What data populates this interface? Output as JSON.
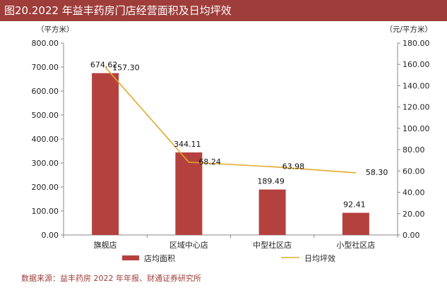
{
  "title": "图20.2022 年益丰药房门店经营面积及日均坪效",
  "source": "数据来源：益丰药房 2022 年年报、财通证券研究所",
  "chart_data": {
    "type": "bar",
    "categories": [
      "旗舰店",
      "区域中心店",
      "中型社区店",
      "小型社区店"
    ],
    "series": [
      {
        "name": "店均面积",
        "type": "bar",
        "axis": "left",
        "values": [
          674.62,
          344.11,
          189.49,
          92.41
        ],
        "labels": [
          "674.62",
          "344.11",
          "189.49",
          "92.41"
        ],
        "color": "#b5413f"
      },
      {
        "name": "日均坪效",
        "type": "line",
        "axis": "right",
        "values": [
          157.3,
          68.24,
          63.98,
          58.3
        ],
        "labels": [
          "157.30",
          "68.24",
          "63.98",
          "58.30"
        ],
        "color": "#e2a82a"
      }
    ],
    "left_unit": "（平方米）",
    "right_unit": "（元/平方米）",
    "ylim_left": [
      0,
      800
    ],
    "ylim_right": [
      0,
      180
    ],
    "left_ticks": [
      "0.00",
      "100.00",
      "200.00",
      "300.00",
      "400.00",
      "500.00",
      "600.00",
      "700.00",
      "800.00"
    ],
    "right_ticks": [
      "0.00",
      "20.00",
      "40.00",
      "60.00",
      "80.00",
      "100.00",
      "120.00",
      "140.00",
      "160.00",
      "180.00"
    ],
    "legend_position": "bottom",
    "grid": false
  },
  "colors": {
    "title_bg": "#9e3d3a",
    "bar": "#b5413f",
    "line": "#e2a82a",
    "axis": "#888888"
  }
}
